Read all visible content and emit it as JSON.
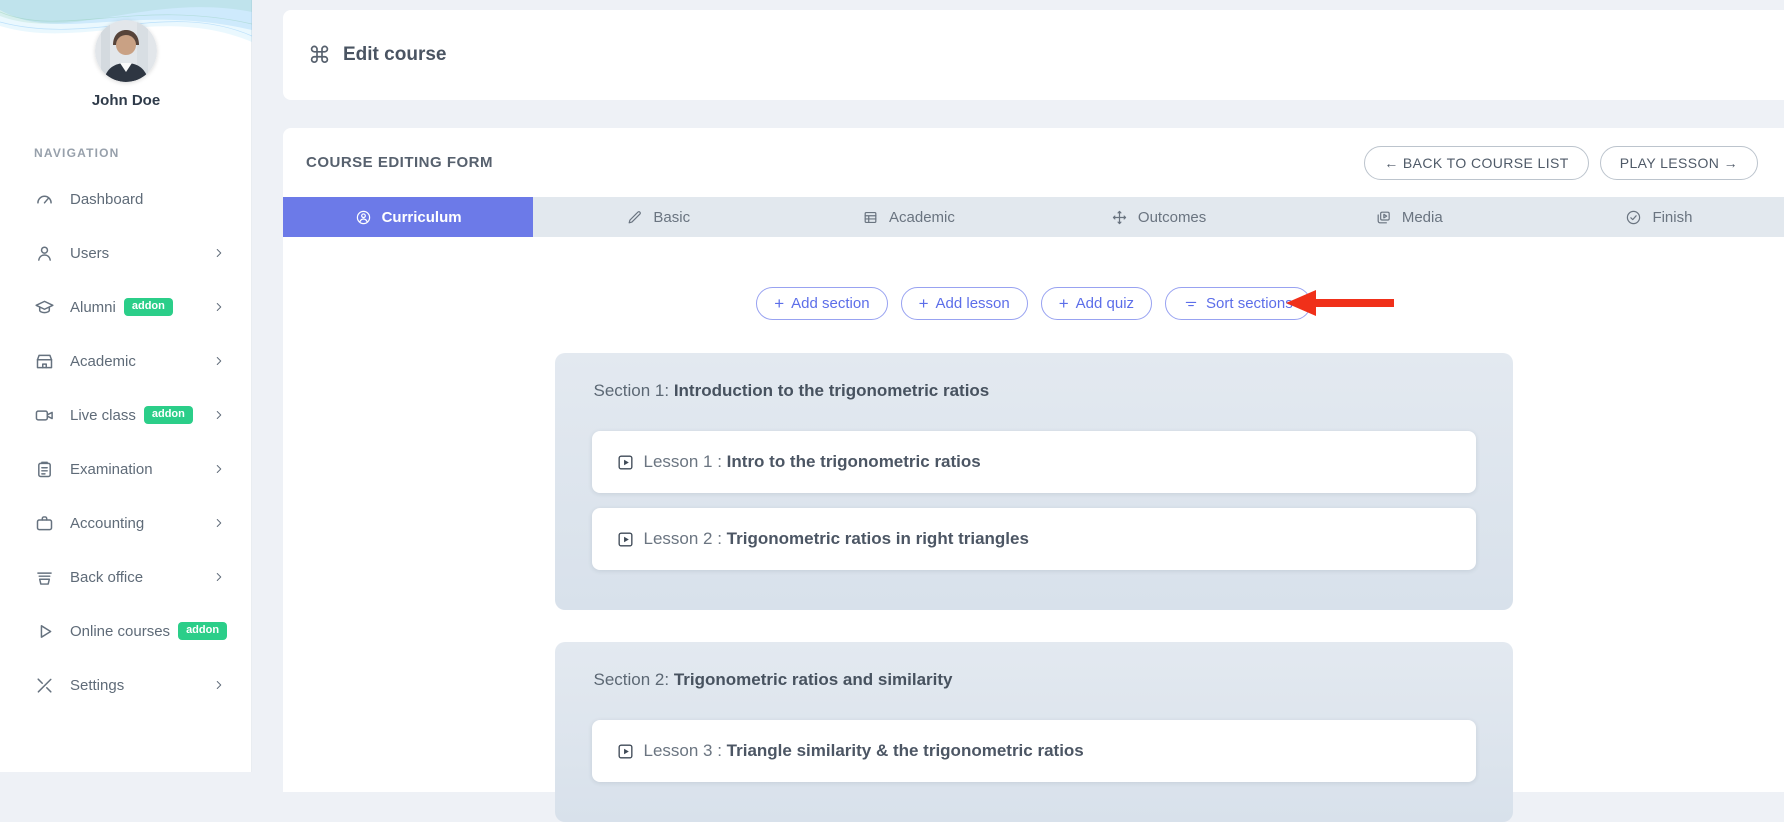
{
  "colors": {
    "accent": "#6c7ae8",
    "addon_badge": "#2bce89",
    "annotation_arrow": "#f0301a",
    "tab_inactive_bg": "#e2e8ee",
    "section_card_bg": "#dde4ec"
  },
  "sidebar": {
    "user": {
      "name": "John Doe"
    },
    "nav_label": "NAVIGATION",
    "addon_badge": "addon",
    "items": [
      {
        "label": "Dashboard",
        "icon": "gauge-icon",
        "chevron": false,
        "addon": false
      },
      {
        "label": "Users",
        "icon": "users-icon",
        "chevron": true,
        "addon": false
      },
      {
        "label": "Alumni",
        "icon": "graduation-cap-icon",
        "chevron": true,
        "addon": true
      },
      {
        "label": "Academic",
        "icon": "school-icon",
        "chevron": true,
        "addon": false
      },
      {
        "label": "Live class",
        "icon": "video-camera-icon",
        "chevron": true,
        "addon": true
      },
      {
        "label": "Examination",
        "icon": "clipboard-icon",
        "chevron": true,
        "addon": false
      },
      {
        "label": "Accounting",
        "icon": "briefcase-icon",
        "chevron": true,
        "addon": false
      },
      {
        "label": "Back office",
        "icon": "tray-icon",
        "chevron": true,
        "addon": false
      },
      {
        "label": "Online courses",
        "icon": "play-icon",
        "chevron": false,
        "addon": true
      },
      {
        "label": "Settings",
        "icon": "tools-icon",
        "chevron": true,
        "addon": false
      }
    ]
  },
  "header": {
    "title": "Edit course",
    "icon": "command-icon",
    "icon_glyph": "⌘"
  },
  "form": {
    "title": "COURSE EDITING FORM",
    "back_button": "← BACK TO COURSE LIST",
    "play_button": "PLAY LESSON →",
    "tabs": [
      {
        "label": "Curriculum",
        "icon": "user-circle-icon",
        "active": true
      },
      {
        "label": "Basic",
        "icon": "pen-icon",
        "active": false
      },
      {
        "label": "Academic",
        "icon": "table-icon",
        "active": false
      },
      {
        "label": "Outcomes",
        "icon": "move-icon",
        "active": false
      },
      {
        "label": "Media",
        "icon": "media-icon",
        "active": false
      },
      {
        "label": "Finish",
        "icon": "check-circle-icon",
        "active": false
      }
    ],
    "actions": [
      {
        "label": "Add section",
        "icon": "plus-icon"
      },
      {
        "label": "Add lesson",
        "icon": "plus-icon"
      },
      {
        "label": "Add quiz",
        "icon": "plus-icon"
      },
      {
        "label": "Sort sections",
        "icon": "sort-icon"
      }
    ],
    "annotation": {
      "type": "red-arrow",
      "points_at": "Sort sections"
    },
    "sections": [
      {
        "label": "Section 1:",
        "title": "Introduction to the trigonometric ratios",
        "lessons": [
          {
            "label": "Lesson 1 :",
            "title": "Intro to the trigonometric ratios"
          },
          {
            "label": "Lesson 2 :",
            "title": "Trigonometric ratios in right triangles"
          }
        ]
      },
      {
        "label": "Section 2:",
        "title": "Trigonometric ratios and similarity",
        "lessons": [
          {
            "label": "Lesson 3 :",
            "title": "Triangle similarity & the trigonometric ratios"
          }
        ]
      }
    ]
  }
}
